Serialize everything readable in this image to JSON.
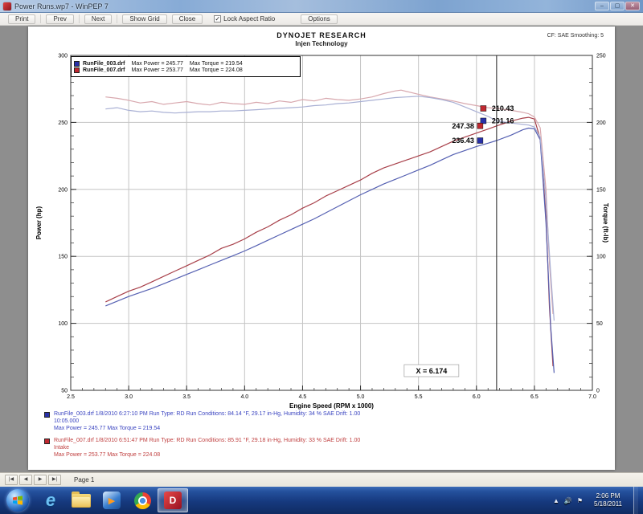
{
  "window": {
    "title": "Power Runs.wp7 - WinPEP 7",
    "minimize": "–",
    "maximize": "▢",
    "close": "✕"
  },
  "toolbar": {
    "buttons": [
      "Print",
      "Prev",
      "Next",
      "Show Grid",
      "Close"
    ],
    "lock_aspect_checked": "✓",
    "lock_aspect_label": "Lock Aspect Ratio",
    "options_label": "Options"
  },
  "page_header": {
    "title": "DYNOJET RESEARCH",
    "subtitle": "Injen Technology",
    "corner_note": "CF: SAE     Smoothing: 5"
  },
  "legend_rows": [
    {
      "color": "#2830a8",
      "file": "RunFile_003.drf",
      "max_power": "Max Power = 245.77",
      "max_torque": "Max Torque = 219.54"
    },
    {
      "color": "#c02830",
      "file": "RunFile_007.drf",
      "max_power": "Max Power = 253.77",
      "max_torque": "Max Torque = 224.08"
    }
  ],
  "chart_data": {
    "type": "line",
    "title": "DYNOJET RESEARCH",
    "subtitle": "Injen Technology",
    "xlabel": "Engine Speed (RPM x 1000)",
    "ylabel_left": "Power (hp)",
    "ylabel_right": "Torque (ft-lb)",
    "xlim": [
      2.5,
      7.0
    ],
    "x_ticks": [
      2.5,
      3.0,
      3.5,
      4.0,
      4.5,
      5.0,
      5.5,
      6.0,
      6.5,
      7.0
    ],
    "ylim_left": [
      50,
      300
    ],
    "y_ticks_left": [
      300,
      250,
      200,
      150,
      100,
      50
    ],
    "ylim_right": [
      0,
      250
    ],
    "y_ticks_right": [
      250,
      200,
      150,
      100,
      50,
      0
    ],
    "grid": true,
    "legend_position": "top-left",
    "series": [
      {
        "name": "RunFile_007 Power",
        "axis": "left",
        "color": "#a8404a",
        "points": [
          [
            2.8,
            116
          ],
          [
            2.9,
            120
          ],
          [
            3.0,
            124
          ],
          [
            3.1,
            127
          ],
          [
            3.2,
            131
          ],
          [
            3.3,
            135
          ],
          [
            3.4,
            139
          ],
          [
            3.5,
            143
          ],
          [
            3.6,
            147
          ],
          [
            3.7,
            151
          ],
          [
            3.8,
            156
          ],
          [
            3.9,
            159
          ],
          [
            4.0,
            163
          ],
          [
            4.1,
            168
          ],
          [
            4.2,
            172
          ],
          [
            4.3,
            177
          ],
          [
            4.4,
            181
          ],
          [
            4.5,
            186
          ],
          [
            4.6,
            190
          ],
          [
            4.7,
            195
          ],
          [
            4.8,
            199
          ],
          [
            4.9,
            203
          ],
          [
            5.0,
            207
          ],
          [
            5.1,
            212
          ],
          [
            5.2,
            216
          ],
          [
            5.3,
            219
          ],
          [
            5.4,
            222
          ],
          [
            5.5,
            225
          ],
          [
            5.6,
            228
          ],
          [
            5.7,
            232
          ],
          [
            5.8,
            236
          ],
          [
            5.9,
            239
          ],
          [
            6.0,
            242
          ],
          [
            6.1,
            245
          ],
          [
            6.174,
            247.38
          ],
          [
            6.3,
            251
          ],
          [
            6.4,
            253.2
          ],
          [
            6.45,
            253.77
          ],
          [
            6.5,
            252.5
          ],
          [
            6.55,
            238
          ],
          [
            6.6,
            180
          ],
          [
            6.63,
            112
          ],
          [
            6.66,
            68
          ]
        ]
      },
      {
        "name": "RunFile_003 Power",
        "axis": "left",
        "color": "#5560b2",
        "points": [
          [
            2.8,
            113
          ],
          [
            2.9,
            116.5
          ],
          [
            3.0,
            120
          ],
          [
            3.1,
            123
          ],
          [
            3.2,
            126
          ],
          [
            3.3,
            129.5
          ],
          [
            3.4,
            133
          ],
          [
            3.5,
            136.5
          ],
          [
            3.6,
            140
          ],
          [
            3.7,
            143.5
          ],
          [
            3.8,
            147
          ],
          [
            3.9,
            150.5
          ],
          [
            4.0,
            154
          ],
          [
            4.1,
            158
          ],
          [
            4.2,
            162
          ],
          [
            4.3,
            166
          ],
          [
            4.4,
            170
          ],
          [
            4.5,
            174
          ],
          [
            4.6,
            178
          ],
          [
            4.7,
            182.5
          ],
          [
            4.8,
            187
          ],
          [
            4.9,
            191.5
          ],
          [
            5.0,
            196
          ],
          [
            5.1,
            200
          ],
          [
            5.2,
            204
          ],
          [
            5.3,
            207.5
          ],
          [
            5.4,
            211
          ],
          [
            5.5,
            214.5
          ],
          [
            5.6,
            218
          ],
          [
            5.7,
            222
          ],
          [
            5.8,
            226
          ],
          [
            5.9,
            229
          ],
          [
            6.0,
            232
          ],
          [
            6.1,
            234.5
          ],
          [
            6.174,
            236.43
          ],
          [
            6.3,
            240.5
          ],
          [
            6.4,
            244.5
          ],
          [
            6.45,
            245.77
          ],
          [
            6.5,
            245.2
          ],
          [
            6.55,
            237
          ],
          [
            6.6,
            175
          ],
          [
            6.64,
            98
          ],
          [
            6.67,
            63
          ]
        ]
      },
      {
        "name": "RunFile_007 Torque",
        "axis": "right",
        "color": "#d8a8ae",
        "points": [
          [
            2.8,
            219
          ],
          [
            2.9,
            218
          ],
          [
            3.0,
            216.5
          ],
          [
            3.1,
            214.5
          ],
          [
            3.2,
            215.5
          ],
          [
            3.3,
            213.5
          ],
          [
            3.4,
            214.5
          ],
          [
            3.5,
            215.5
          ],
          [
            3.6,
            214
          ],
          [
            3.7,
            213
          ],
          [
            3.8,
            215
          ],
          [
            3.9,
            214
          ],
          [
            4.0,
            213.5
          ],
          [
            4.1,
            215
          ],
          [
            4.2,
            214
          ],
          [
            4.3,
            216
          ],
          [
            4.4,
            215
          ],
          [
            4.5,
            217
          ],
          [
            4.6,
            216
          ],
          [
            4.7,
            218
          ],
          [
            4.8,
            217
          ],
          [
            4.9,
            216.5
          ],
          [
            5.0,
            217.5
          ],
          [
            5.1,
            219
          ],
          [
            5.2,
            221.5
          ],
          [
            5.3,
            223.5
          ],
          [
            5.35,
            224.08
          ],
          [
            5.4,
            223
          ],
          [
            5.5,
            221
          ],
          [
            5.6,
            219
          ],
          [
            5.7,
            217.5
          ],
          [
            5.8,
            216
          ],
          [
            5.9,
            214
          ],
          [
            6.0,
            212.5
          ],
          [
            6.1,
            211
          ],
          [
            6.174,
            210.43
          ],
          [
            6.3,
            209
          ],
          [
            6.4,
            207.5
          ],
          [
            6.45,
            206.5
          ],
          [
            6.5,
            204
          ],
          [
            6.55,
            196
          ],
          [
            6.6,
            150
          ],
          [
            6.63,
            95
          ],
          [
            6.66,
            57
          ]
        ]
      },
      {
        "name": "RunFile_003 Torque",
        "axis": "right",
        "color": "#a9b0d4",
        "points": [
          [
            2.8,
            210
          ],
          [
            2.9,
            211
          ],
          [
            3.0,
            209
          ],
          [
            3.1,
            208
          ],
          [
            3.2,
            208.5
          ],
          [
            3.3,
            207.5
          ],
          [
            3.4,
            207
          ],
          [
            3.5,
            207.5
          ],
          [
            3.6,
            208
          ],
          [
            3.7,
            208
          ],
          [
            3.8,
            208.5
          ],
          [
            3.9,
            208.5
          ],
          [
            4.0,
            209
          ],
          [
            4.1,
            209.5
          ],
          [
            4.2,
            210
          ],
          [
            4.3,
            210.5
          ],
          [
            4.4,
            211
          ],
          [
            4.5,
            211.5
          ],
          [
            4.6,
            212.5
          ],
          [
            4.7,
            213
          ],
          [
            4.8,
            214
          ],
          [
            4.9,
            214.5
          ],
          [
            5.0,
            215.5
          ],
          [
            5.1,
            216.5
          ],
          [
            5.2,
            217.5
          ],
          [
            5.3,
            218.5
          ],
          [
            5.4,
            219
          ],
          [
            5.5,
            219.54
          ],
          [
            5.6,
            218.5
          ],
          [
            5.7,
            217
          ],
          [
            5.8,
            215
          ],
          [
            5.9,
            211.5
          ],
          [
            6.0,
            208
          ],
          [
            6.1,
            204.5
          ],
          [
            6.174,
            201.16
          ],
          [
            6.3,
            199.5
          ],
          [
            6.4,
            198.5
          ],
          [
            6.45,
            198
          ],
          [
            6.5,
            196.5
          ],
          [
            6.55,
            189
          ],
          [
            6.6,
            142
          ],
          [
            6.64,
            88
          ],
          [
            6.67,
            52
          ]
        ]
      }
    ]
  },
  "cursor": {
    "x": 6.174,
    "label": "X = 6.174",
    "markers": [
      {
        "value_label": "210.43",
        "value": 210.43,
        "axis": "right",
        "side": "right",
        "color": "#c02830"
      },
      {
        "value_label": "201.16",
        "value": 201.16,
        "axis": "right",
        "side": "right",
        "color": "#2830a8"
      },
      {
        "value_label": "247.38",
        "value": 247.38,
        "axis": "left",
        "side": "left",
        "color": "#c02830"
      },
      {
        "value_label": "236.43",
        "value": 236.43,
        "axis": "left",
        "side": "left",
        "color": "#2830a8"
      }
    ]
  },
  "annotations": [
    {
      "color": "#3a44c0",
      "line1": "RunFile_003.drf 1/8/2010 6:27:10 PM  Run Type: RD  Run Conditions: 84.14 °F, 29.17 in-Hg, Humidity: 34 %  SAE  Drift: 1.00",
      "line2": "10:05.000",
      "line3": "Max Power = 245.77  Max Torque = 219.54"
    },
    {
      "color": "#c04040",
      "line1": "RunFile_007.drf 1/8/2010 6:51:47 PM  Run Type: RD  Run Conditions: 85.91 °F, 29.18 in-Hg, Humidity: 33 %  SAE  Drift: 1.00",
      "line2": "Intake",
      "line3": "Max Power = 253.77  Max Torque = 224.08"
    }
  ],
  "statusbar": {
    "nav_icons": [
      "|◀",
      "◀",
      "▶",
      "▶|"
    ],
    "page_label": "Page 1"
  },
  "taskbar": {
    "wmp_glyph": "▶",
    "tray_icons": [
      "▲",
      "🔊",
      "⚑"
    ],
    "time": "2:06 PM",
    "date": "5/18/2011"
  }
}
